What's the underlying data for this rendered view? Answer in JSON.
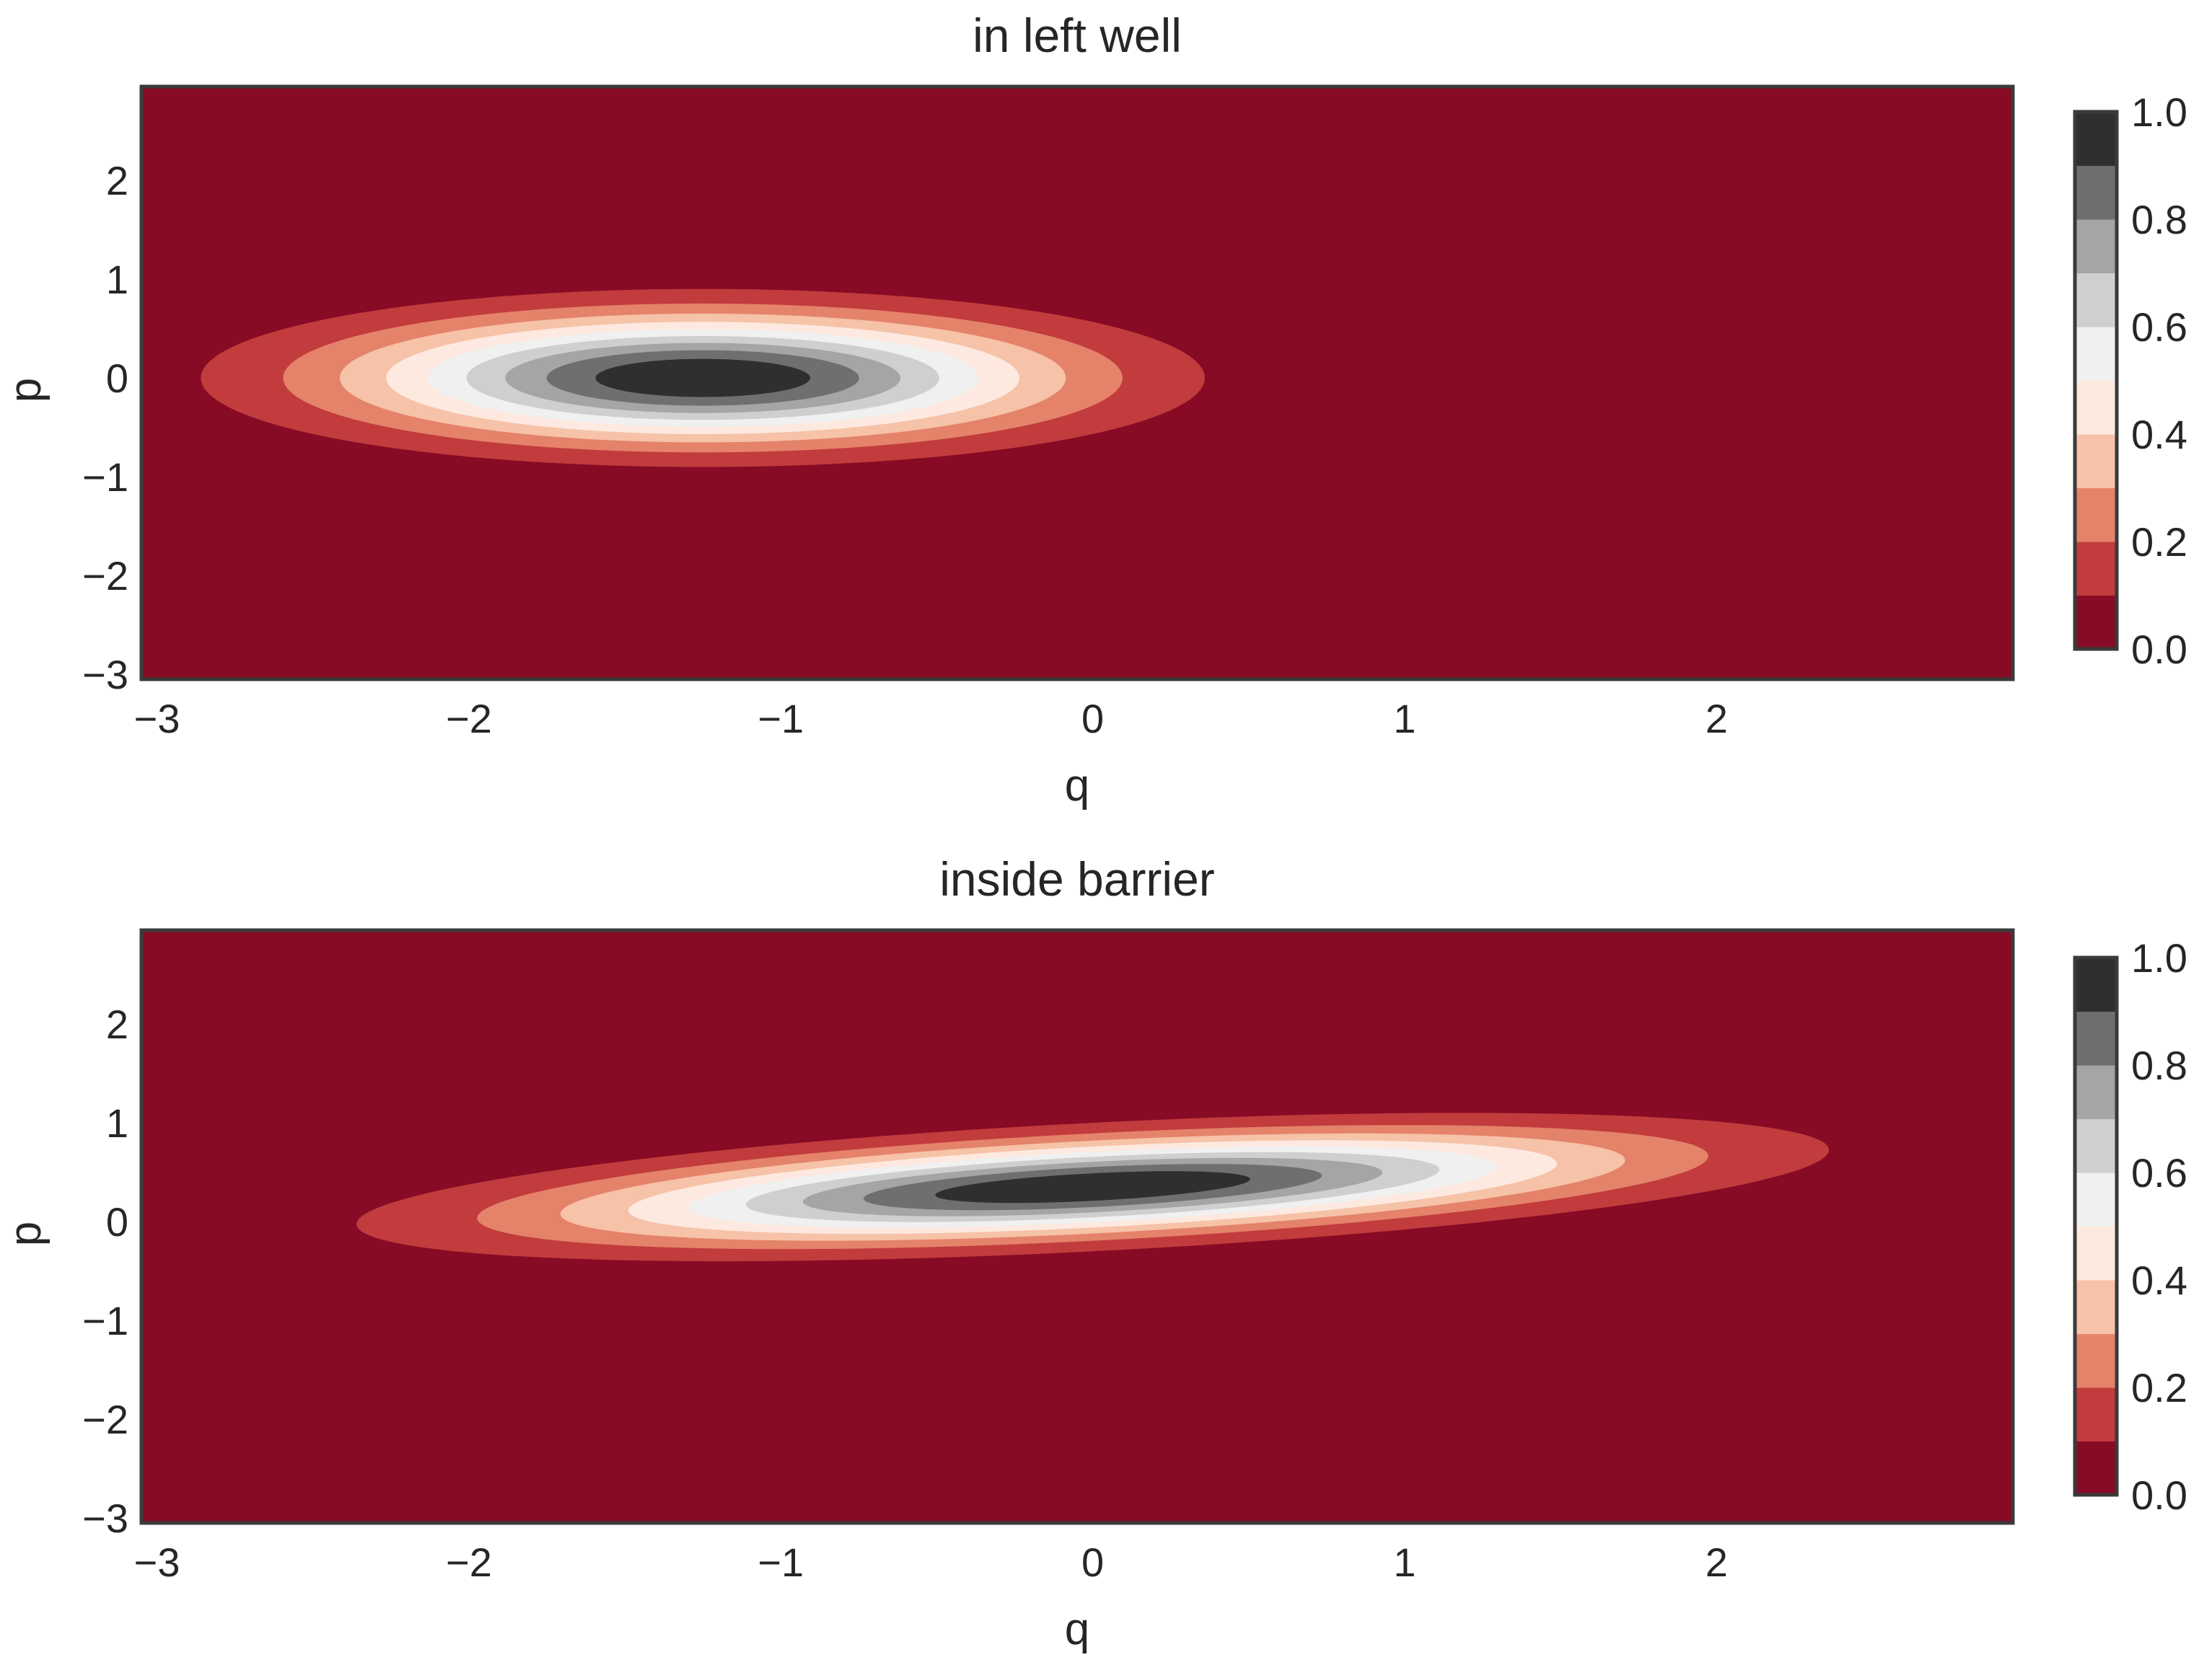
{
  "chart_data": [
    {
      "type": "filled-contour",
      "title": "in left well",
      "xlabel": "q",
      "ylabel": "p",
      "xlim": [
        -3,
        3
      ],
      "ylim": [
        -3,
        3
      ],
      "xticks": [
        -3,
        -2,
        -1,
        0,
        1,
        2
      ],
      "xtick_labels": [
        "−3",
        "−2",
        "−1",
        "0",
        "1",
        "2"
      ],
      "yticks": [
        -3,
        -2,
        -1,
        0,
        1,
        2
      ],
      "ytick_labels": [
        "−3",
        "−2",
        "−1",
        "0",
        "1",
        "2"
      ],
      "grid": false,
      "distribution": {
        "center": [
          -1.25,
          0
        ],
        "sigma_q": 0.75,
        "sigma_p": 0.42,
        "correlation": 0.0
      },
      "colorbar": {
        "levels": [
          0.0,
          0.1,
          0.2,
          0.3,
          0.4,
          0.5,
          0.6,
          0.7,
          0.8,
          0.9,
          1.0
        ],
        "tick_values": [
          0.0,
          0.2,
          0.4,
          0.6,
          0.8,
          1.0
        ],
        "tick_labels": [
          "0.0",
          "0.2",
          "0.4",
          "0.6",
          "0.8",
          "1.0"
        ]
      }
    },
    {
      "type": "filled-contour",
      "title": "inside barrier",
      "xlabel": "q",
      "ylabel": "p",
      "xlim": [
        -3,
        3
      ],
      "ylim": [
        -3,
        3
      ],
      "xticks": [
        -3,
        -2,
        -1,
        0,
        1,
        2
      ],
      "xtick_labels": [
        "−3",
        "−2",
        "−1",
        "0",
        "1",
        "2"
      ],
      "yticks": [
        -3,
        -2,
        -1,
        0,
        1,
        2
      ],
      "ytick_labels": [
        "−3",
        "−2",
        "−1",
        "0",
        "1",
        "2"
      ],
      "grid": false,
      "distribution": {
        "center": [
          0,
          0.35
        ],
        "sigma_q": 1.1,
        "sigma_p": 0.35,
        "correlation": 0.5
      },
      "colorbar": {
        "levels": [
          0.0,
          0.1,
          0.2,
          0.3,
          0.4,
          0.5,
          0.6,
          0.7,
          0.8,
          0.9,
          1.0
        ],
        "tick_values": [
          0.0,
          0.2,
          0.4,
          0.6,
          0.8,
          1.0
        ],
        "tick_labels": [
          "0.0",
          "0.2",
          "0.4",
          "0.6",
          "0.8",
          "1.0"
        ]
      }
    }
  ],
  "colors": {
    "bands": [
      "#870b25",
      "#c23b3d",
      "#e4836a",
      "#f6c2a8",
      "#fde9df",
      "#f0f0f0",
      "#cfcfcf",
      "#a5a5a5",
      "#6f6f6f",
      "#2f2f2f"
    ],
    "frame": "#3a3a3a",
    "text": "#262626"
  }
}
